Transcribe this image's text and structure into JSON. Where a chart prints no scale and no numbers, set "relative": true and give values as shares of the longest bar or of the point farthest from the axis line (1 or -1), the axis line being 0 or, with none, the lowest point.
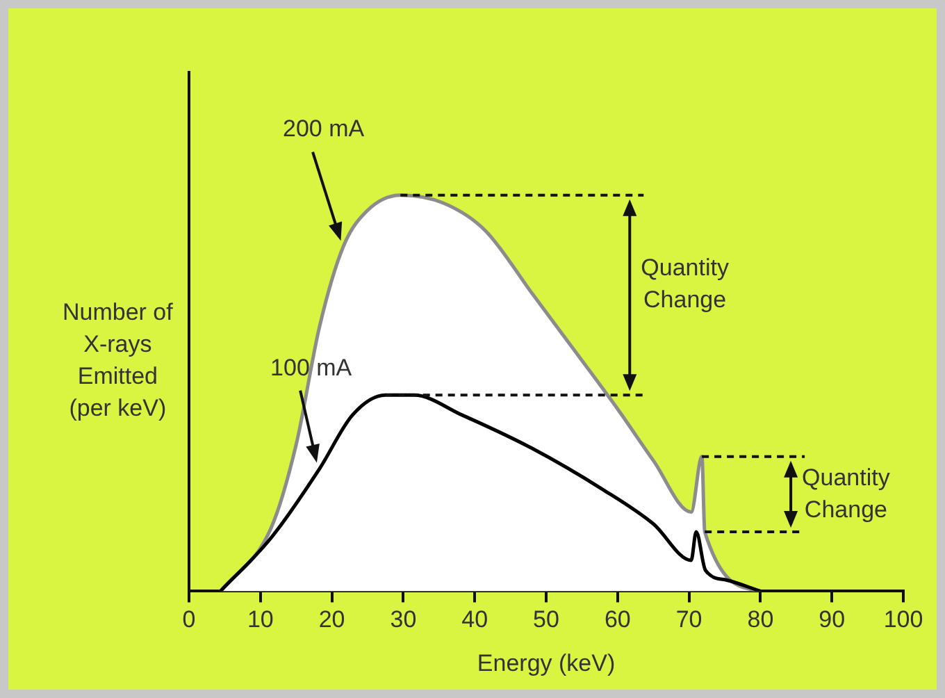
{
  "chart_data": {
    "type": "line",
    "relative": true,
    "xlabel": "Energy (keV)",
    "ylabel": "Number of\nX-rays\nEmitted\n(per keV)",
    "xlim": [
      0,
      100
    ],
    "xticks": [
      0,
      10,
      20,
      30,
      40,
      50,
      60,
      70,
      80,
      90,
      100
    ],
    "grid": false,
    "legend": false,
    "marker": "none",
    "line_style": "solid",
    "series": [
      {
        "name": "200 mA",
        "type": "area",
        "color": "#8c8c8c",
        "x": [
          4.4,
          11.5,
          15,
          18.3,
          21.6,
          24.9,
          29.6,
          35.6,
          41.5,
          48.1,
          54.7,
          60,
          65,
          70.3,
          71.8,
          72.2,
          80
        ],
        "values": [
          0,
          0.16,
          0.37,
          0.67,
          0.87,
          0.96,
          1,
          0.98,
          0.91,
          0.75,
          0.59,
          0.46,
          0.33,
          0.2,
          0.34,
          0.15,
          0
        ]
      },
      {
        "name": "100 mA",
        "color": "#000000",
        "x": [
          4.4,
          11.5,
          18.3,
          22.9,
          27.5,
          31.5,
          38.2,
          48.1,
          58,
          65,
          70.3,
          71,
          72.3,
          75.3,
          80
        ],
        "values": [
          0,
          0.135,
          0.31,
          0.445,
          0.495,
          0.495,
          0.445,
          0.36,
          0.256,
          0.17,
          0.078,
          0.15,
          0.053,
          0.028,
          0
        ]
      }
    ],
    "annotations": [
      "Quantity\nChange",
      "Quantity\nChange"
    ]
  }
}
